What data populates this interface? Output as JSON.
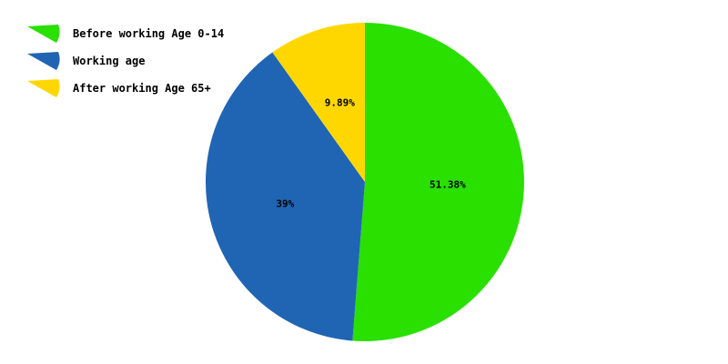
{
  "chart_data": {
    "type": "pie",
    "title": "",
    "slices": [
      {
        "label": "Before working Age 0-14",
        "value": 51.38,
        "display": "51.38%",
        "color": "#29e000"
      },
      {
        "label": "Working age",
        "value": 39.0,
        "display": "39%",
        "color": "#2065b4"
      },
      {
        "label": "After working Age 65+",
        "value": 9.89,
        "display": "9.89%",
        "color": "#ffd700"
      }
    ],
    "start_angle": "top (12 o'clock), clockwise",
    "legend_position": "top-left"
  }
}
